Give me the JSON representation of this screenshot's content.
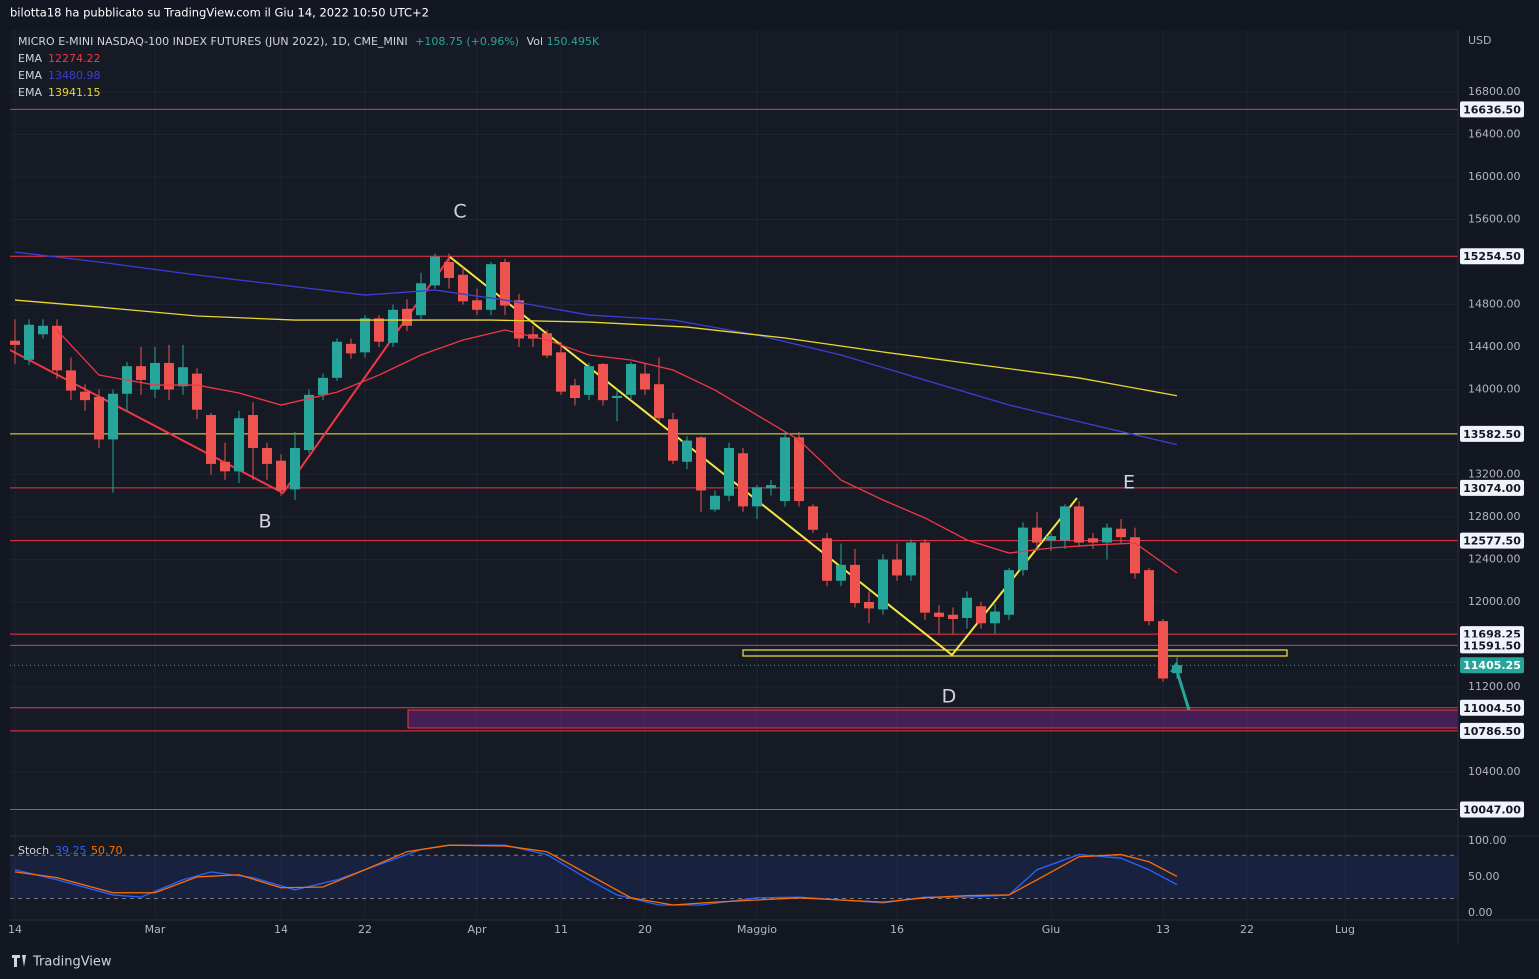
{
  "header": {
    "publisher": "bilotta18 ha pubblicato su TradingView.com il Giu 14, 2022 10:50 UTC+2"
  },
  "footer": {
    "brand": "TradingView"
  },
  "chart_data": {
    "type": "candlestick",
    "title": "MICRO E-MINI NASDAQ-100 INDEX FUTURES (JUN 2022), 1D, CME_MINI",
    "change": "+108.75 (+0.96%)",
    "volume_label": "Vol",
    "volume": "150.495K",
    "currency": "USD",
    "up_color": "#26a69a",
    "down_color": "#ef5350",
    "categories": [
      "14",
      null,
      null,
      null,
      null,
      null,
      null,
      null,
      null,
      null,
      "Mar",
      null,
      null,
      null,
      null,
      null,
      null,
      null,
      null,
      "14",
      null,
      null,
      null,
      null,
      null,
      "22",
      null,
      null,
      null,
      null,
      null,
      null,
      null,
      "Apr",
      null,
      null,
      null,
      null,
      null,
      "11",
      null,
      null,
      null,
      null,
      null,
      "20",
      null,
      null,
      null,
      null,
      null,
      null,
      null,
      "Maggio",
      null,
      null,
      null,
      null,
      null,
      null,
      null,
      null,
      null,
      "16",
      null,
      null,
      null,
      null,
      null,
      null,
      null,
      null,
      null,
      null,
      "Giu",
      null,
      null,
      null,
      null,
      null,
      null,
      null,
      "13",
      null,
      null,
      null,
      null,
      null,
      "22",
      null,
      null,
      null,
      null,
      null,
      null,
      "Lug"
    ],
    "open": [
      14460,
      14280,
      14520,
      14600,
      14180,
      13980,
      13930,
      13530,
      13960,
      14220,
      14000,
      14250,
      14030,
      14150,
      13760,
      13320,
      13230,
      13760,
      13450,
      13330,
      13060,
      13430,
      13950,
      14110,
      14430,
      14350,
      14670,
      14440,
      14760,
      14700,
      14980,
      15200,
      15080,
      14840,
      14750,
      15200,
      14840,
      14520,
      14530,
      14350,
      14040,
      13950,
      14240,
      13920,
      13950,
      14150,
      14050,
      13720,
      13320,
      13550,
      12870,
      13000,
      13400,
      12900,
      13070,
      12950,
      13550,
      12900,
      12600,
      12200,
      12350,
      12000,
      11930,
      12400,
      12250,
      12560,
      11900,
      11880,
      11850,
      11960,
      11800,
      11880,
      12300,
      12700,
      12580,
      12580,
      12900,
      12600,
      12560,
      12690,
      12610,
      12300,
      11820,
      11330,
      null,
      null,
      null,
      null,
      null,
      null,
      null,
      null,
      null,
      null,
      null,
      null
    ],
    "high": [
      14660,
      14660,
      14660,
      14660,
      14300,
      14050,
      14000,
      14000,
      14260,
      14400,
      14400,
      14420,
      14420,
      14200,
      13780,
      13500,
      13800,
      13880,
      13500,
      13390,
      13600,
      14000,
      14150,
      14480,
      14480,
      14700,
      14700,
      14800,
      14850,
      15100,
      15280,
      15280,
      15150,
      14950,
      15200,
      15230,
      14900,
      14600,
      14560,
      14450,
      14100,
      14250,
      14250,
      14000,
      14260,
      14250,
      14300,
      13780,
      13560,
      13560,
      13050,
      13500,
      13450,
      13100,
      13150,
      13600,
      13600,
      12920,
      12650,
      12550,
      12500,
      12100,
      12450,
      12550,
      12590,
      12590,
      11970,
      11950,
      12100,
      12000,
      11980,
      12320,
      12750,
      12850,
      12650,
      12920,
      12950,
      12650,
      12740,
      12780,
      12700,
      12320,
      11840,
      11480,
      null,
      null,
      null,
      null,
      null,
      null,
      null,
      null,
      null,
      null,
      null,
      null
    ],
    "low": [
      14240,
      14230,
      14480,
      14100,
      13900,
      13800,
      13450,
      13030,
      13800,
      13950,
      13920,
      13900,
      13950,
      13720,
      13200,
      13150,
      13120,
      13150,
      13150,
      13000,
      12960,
      13400,
      13900,
      14080,
      14290,
      14300,
      14400,
      14400,
      14550,
      14650,
      14950,
      14950,
      14800,
      14700,
      14700,
      14700,
      14400,
      14400,
      14300,
      13950,
      13850,
      13900,
      13850,
      13700,
      13900,
      13950,
      13700,
      13300,
      13250,
      12850,
      12850,
      12950,
      12850,
      12780,
      13000,
      12900,
      12900,
      12650,
      12150,
      12150,
      11950,
      11800,
      11880,
      12200,
      12200,
      11830,
      11700,
      11700,
      11750,
      11750,
      11700,
      11830,
      12250,
      12500,
      12480,
      12500,
      12520,
      12500,
      12400,
      12550,
      12220,
      11780,
      11250,
      11280,
      null,
      null,
      null,
      null,
      null,
      null,
      null,
      null,
      null,
      null,
      null,
      null
    ],
    "close": [
      14420,
      14610,
      14600,
      14180,
      13990,
      13900,
      13530,
      13960,
      14220,
      14090,
      14250,
      14000,
      14210,
      13810,
      13300,
      13230,
      13730,
      13450,
      13300,
      13050,
      13450,
      13950,
      14110,
      14450,
      14340,
      14670,
      14450,
      14750,
      14600,
      15000,
      15250,
      15050,
      14830,
      14750,
      15180,
      14790,
      14480,
      14480,
      14320,
      13980,
      13920,
      14220,
      13900,
      13940,
      14240,
      14000,
      13730,
      13330,
      13520,
      13050,
      13000,
      13450,
      12900,
      13080,
      13100,
      13550,
      12950,
      12680,
      12200,
      12350,
      11990,
      11940,
      12400,
      12250,
      12560,
      11900,
      11860,
      11840,
      12040,
      11800,
      11910,
      12300,
      12700,
      12560,
      12620,
      12900,
      12560,
      12560,
      12700,
      12610,
      12270,
      11820,
      11280,
      11405.25,
      null,
      null,
      null,
      null,
      null,
      null,
      null,
      null,
      null,
      null,
      null,
      null
    ],
    "ylim": [
      9807,
      17384
    ],
    "yticks": [
      {
        "value": 16800,
        "label": "16800.00"
      },
      {
        "value": 16400,
        "label": "16400.00"
      },
      {
        "value": 16000,
        "label": "16000.00"
      },
      {
        "value": 15600,
        "label": "15600.00"
      },
      {
        "value": 14800,
        "label": "14800.00"
      },
      {
        "value": 14400,
        "label": "14400.00"
      },
      {
        "value": 14000,
        "label": "14000.00"
      },
      {
        "value": 13200,
        "label": "13200.00"
      },
      {
        "value": 12800,
        "label": "12800.00"
      },
      {
        "value": 12400,
        "label": "12400.00"
      },
      {
        "value": 12000,
        "label": "12000.00"
      },
      {
        "value": 11200,
        "label": "11200.00"
      },
      {
        "value": 10400,
        "label": "10400.00"
      }
    ],
    "grid": true,
    "levels": [
      {
        "value": 16636.5,
        "label": "16636.50",
        "color": "#f23645"
      },
      {
        "value": 15254.5,
        "label": "15254.50",
        "color": "#f23645"
      },
      {
        "value": 13582.5,
        "label": "13582.50",
        "color": "#f5e642"
      },
      {
        "value": 13074,
        "label": "13074.00",
        "color": "#f23645"
      },
      {
        "value": 12577.5,
        "label": "12577.50",
        "color": "#f23645"
      },
      {
        "value": 11698.25,
        "label": "11698.25",
        "color": "#f23645"
      },
      {
        "value": 11591.5,
        "label": "11591.50",
        "color": "#f23645"
      },
      {
        "value": 11405.25,
        "label": "11405.25",
        "color": "#26a69a",
        "style": "dotted"
      },
      {
        "value": 11004.5,
        "label": "11004.50",
        "color": "#f23645"
      },
      {
        "value": 10786.5,
        "label": "10786.50",
        "color": "#f23645"
      },
      {
        "value": 10047,
        "label": "10047.00",
        "color": "#f23645"
      }
    ],
    "ema": [
      {
        "name": "EMA",
        "color": "#f23645",
        "x": [
          3,
          6,
          10,
          13,
          16,
          19,
          23,
          26,
          29,
          32,
          35,
          38,
          41,
          44,
          47,
          50,
          53,
          56,
          59,
          62,
          65,
          68,
          71,
          74,
          77,
          80,
          83
        ],
        "values": [
          14559,
          14136,
          14042,
          14042,
          13967,
          13854,
          13976,
          14136,
          14325,
          14466,
          14560,
          14466,
          14325,
          14278,
          14184,
          13995,
          13760,
          13525,
          13148,
          12960,
          12791,
          12584,
          12461,
          12508,
          12536,
          12555,
          12274.22
        ]
      },
      {
        "name": "EMA",
        "color": "#3d3dd6",
        "x": [
          0,
          6,
          13,
          19,
          25,
          30,
          35,
          41,
          47,
          53,
          59,
          65,
          71,
          77,
          83
        ],
        "values": [
          15294,
          15200,
          15078,
          14984,
          14889,
          14936,
          14842,
          14701,
          14654,
          14513,
          14325,
          14089,
          13854,
          13666,
          13480.98
        ]
      },
      {
        "name": "EMA",
        "color": "#e8d82e",
        "x": [
          0,
          6,
          13,
          20,
          27,
          34,
          41,
          48,
          55,
          62,
          69,
          76,
          83
        ],
        "values": [
          14842,
          14776,
          14692,
          14654,
          14654,
          14654,
          14635,
          14588,
          14485,
          14353,
          14231,
          14109,
          13941.15
        ]
      }
    ],
    "annotations": [
      {
        "text": "C",
        "color": "#e91e63"
      },
      {
        "text": "B",
        "color": "#e91e63"
      },
      {
        "text": "D",
        "color": "#f5e642"
      },
      {
        "text": "E",
        "color": "#f5e642"
      }
    ],
    "stoch": {
      "name": "Stoch",
      "ylim": [
        -7,
        104
      ],
      "yticks": [
        {
          "value": 100,
          "label": "100.00"
        },
        {
          "value": 50,
          "label": "50.00"
        },
        {
          "value": 0,
          "label": "0.00"
        }
      ],
      "bands": [
        20,
        80
      ],
      "series": [
        {
          "color": "#2962ff",
          "x": [
            0,
            3,
            7,
            9,
            12,
            14,
            17,
            20,
            23,
            26,
            29,
            31,
            35,
            38,
            41,
            43,
            46,
            49,
            53,
            56,
            59,
            62,
            65,
            68,
            71,
            73,
            76,
            79,
            81,
            83
          ],
          "values": [
            60,
            46,
            25,
            22,
            46,
            57,
            49,
            32,
            46,
            67,
            88,
            94,
            94,
            81,
            46,
            25,
            11,
            11,
            21,
            22,
            18,
            14,
            22,
            22,
            25,
            60,
            81,
            76,
            60,
            39.25
          ]
        },
        {
          "color": "#ff6d00",
          "x": [
            0,
            3,
            7,
            10,
            13,
            16,
            19,
            22,
            25,
            28,
            31,
            35,
            38,
            41,
            44,
            47,
            50,
            53,
            56,
            59,
            62,
            65,
            68,
            71,
            73,
            76,
            79,
            81,
            83
          ],
          "values": [
            57,
            49,
            28,
            28,
            50,
            53,
            35,
            36,
            60,
            85,
            94,
            93,
            85,
            53,
            21,
            11,
            15,
            18,
            21,
            18,
            15,
            21,
            24,
            25,
            46,
            78,
            81,
            71,
            50.7
          ],
          "value_label": "50.70"
        }
      ]
    }
  }
}
